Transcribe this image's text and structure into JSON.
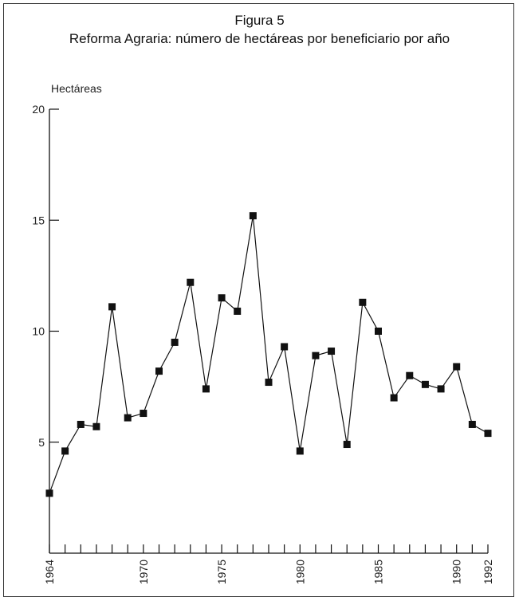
{
  "chart_data": {
    "type": "line",
    "title": "Figura 5",
    "subtitle": "Reforma Agraria: número de hectáreas por beneficiario por año",
    "ylabel": "Hectáreas",
    "xlabel": "",
    "ylim": [
      0,
      20
    ],
    "xlim": [
      1964,
      1992
    ],
    "yticks": [
      5,
      10,
      15,
      20
    ],
    "xtick_labels": [
      1964,
      1970,
      1975,
      1980,
      1985,
      1990,
      1992
    ],
    "grid": false,
    "legend": "none",
    "marker": "square",
    "line_color": "#111111",
    "x": [
      1964,
      1965,
      1966,
      1967,
      1968,
      1969,
      1970,
      1971,
      1972,
      1973,
      1974,
      1975,
      1976,
      1977,
      1978,
      1979,
      1980,
      1981,
      1982,
      1983,
      1984,
      1985,
      1986,
      1987,
      1988,
      1989,
      1990,
      1991,
      1992
    ],
    "series": [
      {
        "values": [
          2.7,
          4.6,
          5.8,
          5.7,
          11.1,
          6.1,
          6.3,
          8.2,
          9.5,
          12.2,
          7.4,
          11.5,
          10.9,
          15.2,
          7.7,
          9.3,
          4.6,
          8.9,
          9.1,
          4.9,
          11.3,
          10.0,
          7.0,
          8.0,
          7.6,
          7.4,
          8.4,
          5.8,
          5.4
        ]
      }
    ]
  }
}
